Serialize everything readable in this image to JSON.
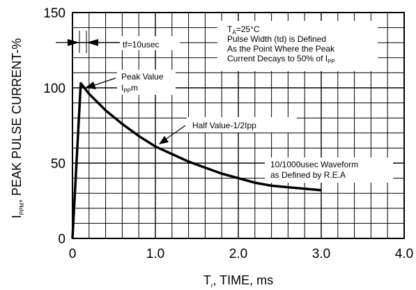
{
  "chart_data": {
    "type": "line",
    "xlabel": {
      "prefix": "T",
      "sub": "r",
      "suffix": ", TIME, ms"
    },
    "ylabel": {
      "prefix": "I",
      "sub": "PPM",
      "suffix": ", PEAK PULSE CURRENT-%"
    },
    "xlim": [
      0,
      4
    ],
    "ylim": [
      0,
      150
    ],
    "x_ticks": [
      "0",
      "1.0",
      "2.0",
      "3.0",
      "4.0"
    ],
    "y_ticks": [
      "0",
      "50",
      "100",
      "150"
    ],
    "grid": true,
    "series": [
      {
        "x": [
          0,
          0.1,
          0.2,
          0.4,
          0.6,
          0.8,
          1.0,
          1.2,
          1.4,
          1.6,
          1.8,
          2.0,
          2.2,
          2.4,
          2.6,
          2.8,
          3.0
        ],
        "y": [
          0,
          103,
          96,
          85,
          76,
          68,
          61,
          56,
          51,
          47,
          43,
          40,
          37,
          35,
          34,
          33,
          32
        ]
      }
    ],
    "annotations": {
      "tf": "tf=10usec",
      "peak_value": "Peak Value",
      "ippm": {
        "prefix": "I",
        "sub": "PP",
        "suffix": "m"
      },
      "half_value": "Half Value-1/2Ipp",
      "waveform_line1": "10/1000usec Waveform",
      "waveform_line2": "as Defined by R.E.A",
      "ta": {
        "prefix": "T",
        "sub": "A",
        "suffix": "=25°C"
      },
      "pw_line1": "Pulse Width (td) is Defined",
      "pw_line2": "As the Point Where the Peak",
      "pw_line3": {
        "prefix": "Current Decays to 50% of I",
        "sub": "PP"
      }
    }
  }
}
